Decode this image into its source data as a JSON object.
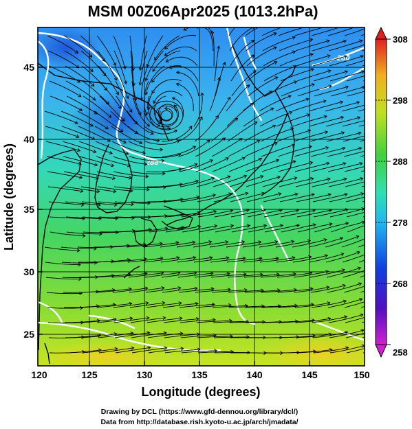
{
  "title": "MSM 00Z06Apr2025 (1013.2hPa)",
  "x_axis": {
    "label": "Longitude (degrees)",
    "ticks": [
      "120",
      "125",
      "130",
      "135",
      "140",
      "145",
      "150"
    ]
  },
  "y_axis": {
    "label": "Latitude  (degrees)",
    "ticks": [
      "25",
      "30",
      "35",
      "40",
      "45"
    ]
  },
  "colorbar": {
    "ticks": [
      "258",
      "268",
      "278",
      "288",
      "298",
      "308"
    ]
  },
  "credits": {
    "line1": "Drawing by DCL (https://www.gfd-dennou.org/library/dcl/)",
    "line2": "Data from http://database.rish.kyoto-u.ac.jp/arch/jmadata/"
  },
  "contour_labels": [
    "288",
    "280"
  ],
  "colors": {
    "cold": "#1060e0",
    "cool": "#30c8e0",
    "mid": "#50d060",
    "warm": "#c8e020",
    "hot": "#e02010"
  },
  "map_data": {
    "type": "map",
    "projection": "equirectangular",
    "lon_range": [
      120,
      150
    ],
    "lat_range": [
      22.5,
      47.5
    ],
    "grid_lon": [
      120,
      125,
      130,
      135,
      140,
      145,
      150
    ],
    "grid_lat": [
      25,
      30,
      35,
      40,
      45
    ],
    "field": "temperature",
    "field_range": [
      258,
      308
    ],
    "overlays": [
      "streamlines",
      "coastlines",
      "contours"
    ],
    "low_center": {
      "lon": 131.8,
      "lat": 41.0
    }
  }
}
